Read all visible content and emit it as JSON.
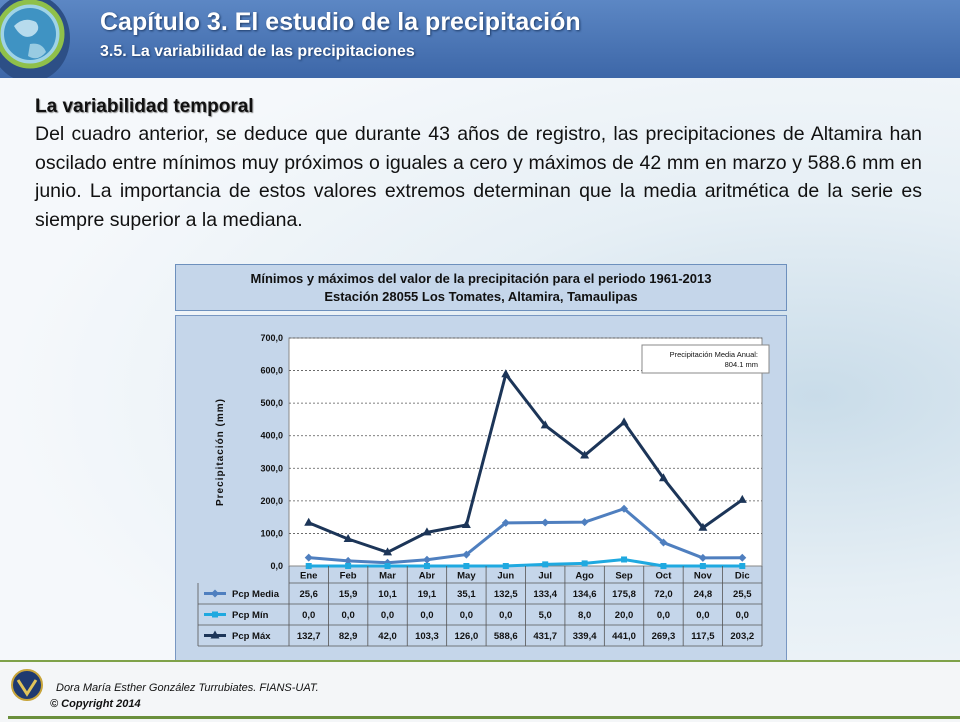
{
  "header": {
    "title": "Capítulo 3. El estudio de la precipitación",
    "subtitle": "3.5. La variabilidad de las precipitaciones"
  },
  "section": {
    "title": "La variabilidad temporal",
    "paragraph": "Del cuadro anterior, se deduce que durante 43 años de registro, las precipitaciones de Altamira han oscilado entre mínimos muy próximos o iguales  a cero y máximos de 42 mm en marzo y 588.6 mm en junio. La importancia de estos valores extremos determinan que la media aritmética de la serie es siempre superior a la mediana."
  },
  "caption": {
    "line1": "Mínimos y máximos del valor de la precipitación para el periodo 1961-2013",
    "line2": "Estación 28055 Los Tomates, Altamira, Tamaulipas"
  },
  "footer": {
    "author": "Dora María Esther González Turrubiates. FIANS-UAT.",
    "copyright": "© Copyright 2014"
  },
  "colors": {
    "header": "#4a74b4",
    "chart_bg": "#c5d6ea",
    "media": "#4f7fbf",
    "min": "#1fa9e0",
    "max": "#1c3558",
    "footer_line": "#6a8f3c"
  },
  "chart_data": {
    "type": "line",
    "ylabel": "Precipitación (mm)",
    "ylim": [
      0,
      700
    ],
    "yticks": [
      "0,0",
      "100,0",
      "200,0",
      "300,0",
      "400,0",
      "500,0",
      "600,0",
      "700,0"
    ],
    "grid": true,
    "annotation": [
      "Precipitación Media Anual:",
      "804.1 mm"
    ],
    "categories": [
      "Ene",
      "Feb",
      "Mar",
      "Abr",
      "May",
      "Jun",
      "Jul",
      "Ago",
      "Sep",
      "Oct",
      "Nov",
      "Dic"
    ],
    "series": [
      {
        "name": "Pcp Media",
        "color": "#4f7fbf",
        "marker": "diamond",
        "values": [
          25.6,
          15.9,
          10.1,
          19.1,
          35.1,
          132.5,
          133.4,
          134.6,
          175.8,
          72.0,
          24.8,
          25.5
        ],
        "labels": [
          "25,6",
          "15,9",
          "10,1",
          "19,1",
          "35,1",
          "132,5",
          "133,4",
          "134,6",
          "175,8",
          "72,0",
          "24,8",
          "25,5"
        ]
      },
      {
        "name": "Pcp Mín",
        "color": "#1fa9e0",
        "marker": "square",
        "values": [
          0.0,
          0.0,
          0.0,
          0.0,
          0.0,
          0.0,
          5.0,
          8.0,
          20.0,
          0.0,
          0.0,
          0.0
        ],
        "labels": [
          "0,0",
          "0,0",
          "0,0",
          "0,0",
          "0,0",
          "0,0",
          "5,0",
          "8,0",
          "20,0",
          "0,0",
          "0,0",
          "0,0"
        ]
      },
      {
        "name": "Pcp Máx",
        "color": "#1c3558",
        "marker": "triangle",
        "values": [
          132.7,
          82.9,
          42.0,
          103.3,
          126.0,
          588.6,
          431.7,
          339.4,
          441.0,
          269.3,
          117.5,
          203.2
        ],
        "labels": [
          "132,7",
          "82,9",
          "42,0",
          "103,3",
          "126,0",
          "588,6",
          "431,7",
          "339,4",
          "441,0",
          "269,3",
          "117,5",
          "203,2"
        ]
      }
    ]
  }
}
